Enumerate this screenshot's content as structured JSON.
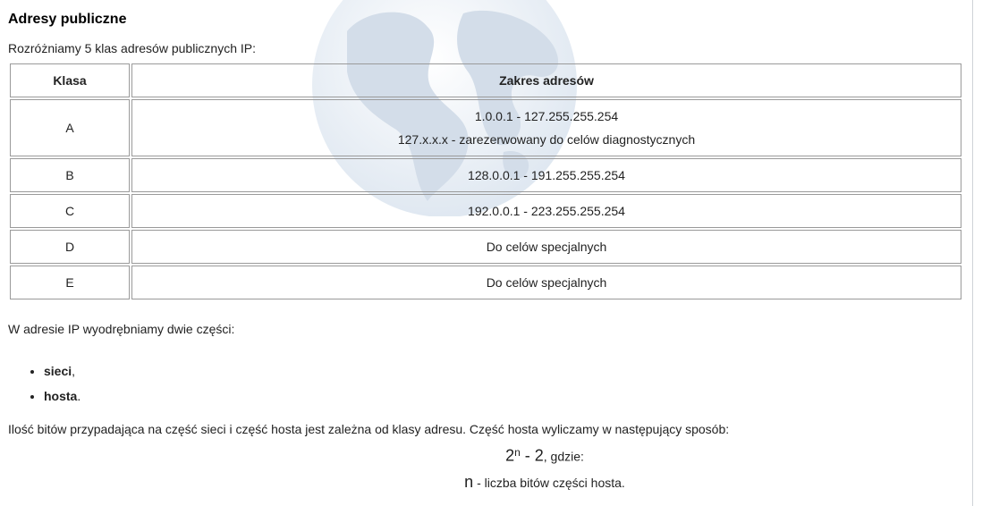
{
  "header": {
    "title": "Adresy publiczne"
  },
  "intro": "Rozróżniamy 5 klas adresów publicznych IP:",
  "table": {
    "headers": [
      "Klasa",
      "Zakres adresów"
    ],
    "rows": [
      {
        "klasa": "A",
        "zakres": "1.0.0.1 - 127.255.255.254",
        "note": "127.x.x.x - zarezerwowany do celów diagnostycznych"
      },
      {
        "klasa": "B",
        "zakres": "128.0.0.1 - 191.255.255.254"
      },
      {
        "klasa": "C",
        "zakres": "192.0.0.1 - 223.255.255.254"
      },
      {
        "klasa": "D",
        "zakres": "Do celów specjalnych"
      },
      {
        "klasa": "E",
        "zakres": "Do celów specjalnych"
      }
    ]
  },
  "parts": {
    "intro": "W adresie IP wyodrębniamy dwie części:",
    "items": [
      {
        "term": "sieci",
        "punct": ","
      },
      {
        "term": "hosta",
        "punct": "."
      }
    ]
  },
  "bits_text": "Ilość bitów przypadająca na część sieci i część hosta jest zależna od klasy adresu. Część hosta wyliczamy w następujący sposób:",
  "formula": {
    "base": "2",
    "exp": "n",
    "rest": " - 2",
    "suffix": ", gdzie:"
  },
  "n_line": {
    "symbol": "n",
    "text": " - liczba bitów części hosta."
  },
  "colors": {
    "globe": "#d7e2ee",
    "border": "#9a9a9a"
  },
  "icons": {
    "background": "globe-icon"
  }
}
